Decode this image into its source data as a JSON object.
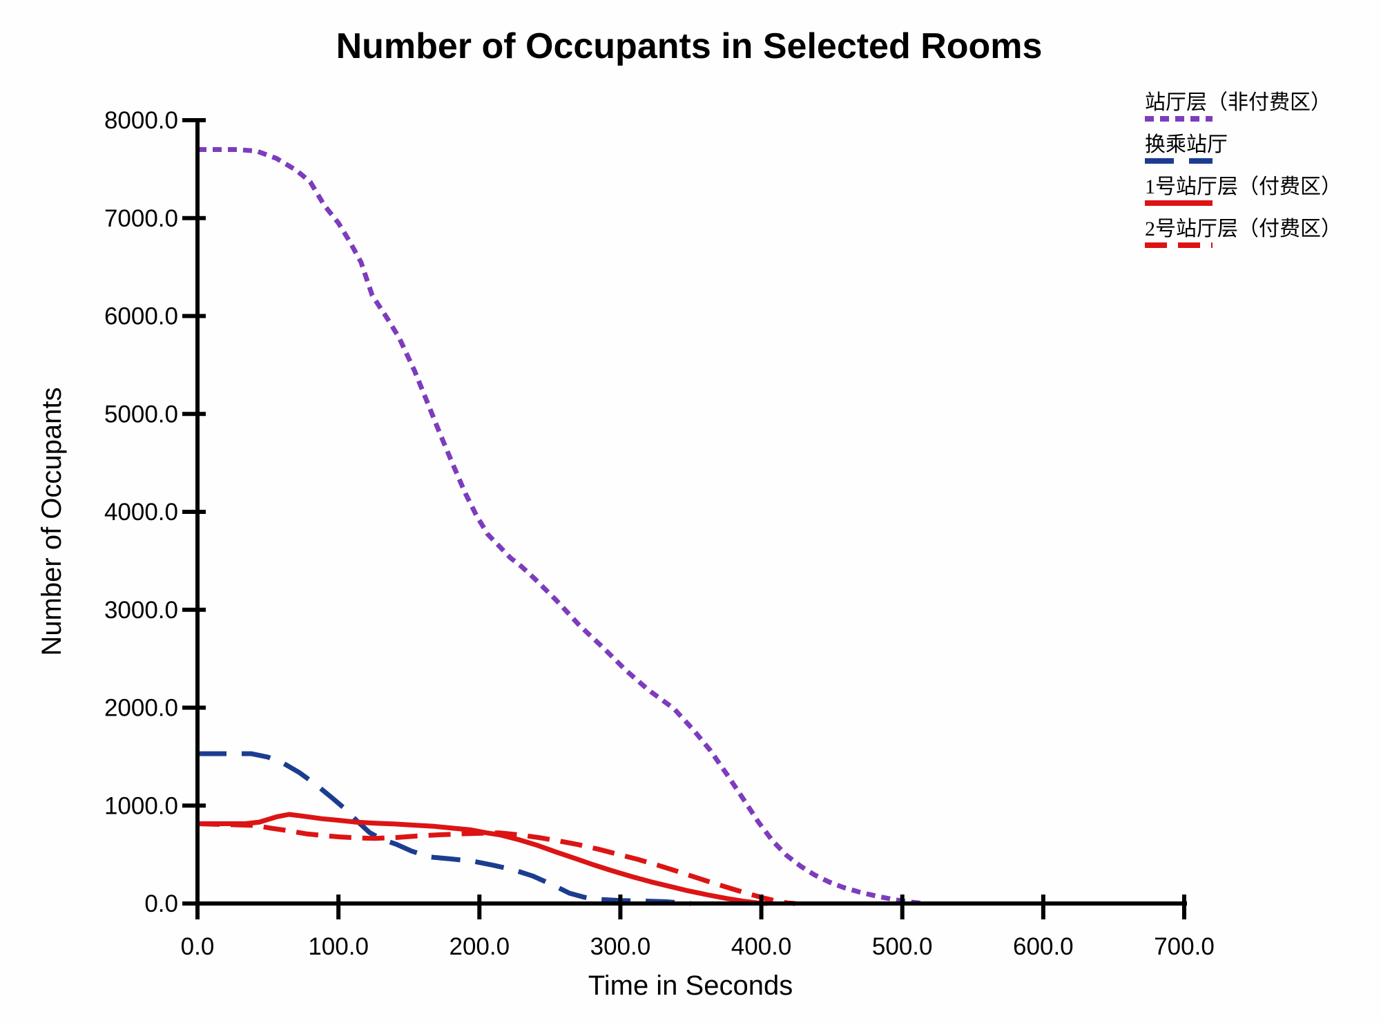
{
  "title": "Number of Occupants in Selected Rooms",
  "legend": [
    {
      "label": "站厅层（非付费区）",
      "series": 0
    },
    {
      "label": "换乘站厅",
      "series": 1
    },
    {
      "label": "1号站厅层（付费区）",
      "series": 2
    },
    {
      "label": "2号站厅层（付费区）",
      "series": 3
    }
  ],
  "chart_data": {
    "type": "line",
    "title": "Number of Occupants in Selected Rooms",
    "xlabel": "Time in Seconds",
    "ylabel": "Number of Occupants",
    "xlim": [
      0,
      700
    ],
    "ylim": [
      0,
      8000
    ],
    "x_tick_labels": [
      "0.0",
      "100.0",
      "200.0",
      "300.0",
      "400.0",
      "500.0",
      "600.0",
      "700.0"
    ],
    "y_tick_labels": [
      "0.0",
      "1000.0",
      "2000.0",
      "3000.0",
      "4000.0",
      "5000.0",
      "6000.0",
      "7000.0",
      "8000.0"
    ],
    "grid": false,
    "legend_position": "top-right",
    "axis_color": "#000000",
    "series": [
      {
        "name": "站厅层（非付费区）",
        "color": "#7D3CBD",
        "style": "dotted",
        "points": [
          [
            0,
            7700
          ],
          [
            28,
            7700
          ],
          [
            42,
            7685
          ],
          [
            56,
            7610
          ],
          [
            70,
            7490
          ],
          [
            80,
            7370
          ],
          [
            90,
            7130
          ],
          [
            100,
            6950
          ],
          [
            108,
            6760
          ],
          [
            116,
            6550
          ],
          [
            124,
            6210
          ],
          [
            134,
            5990
          ],
          [
            143,
            5780
          ],
          [
            154,
            5440
          ],
          [
            163,
            5120
          ],
          [
            172,
            4800
          ],
          [
            181,
            4490
          ],
          [
            190,
            4190
          ],
          [
            198,
            3960
          ],
          [
            206,
            3770
          ],
          [
            214,
            3650
          ],
          [
            222,
            3530
          ],
          [
            230,
            3440
          ],
          [
            239,
            3320
          ],
          [
            255,
            3090
          ],
          [
            271,
            2840
          ],
          [
            288,
            2610
          ],
          [
            304,
            2380
          ],
          [
            320,
            2180
          ],
          [
            338,
            1990
          ],
          [
            352,
            1770
          ],
          [
            364,
            1560
          ],
          [
            376,
            1310
          ],
          [
            388,
            1050
          ],
          [
            398,
            830
          ],
          [
            408,
            640
          ],
          [
            418,
            490
          ],
          [
            428,
            380
          ],
          [
            438,
            290
          ],
          [
            448,
            220
          ],
          [
            458,
            165
          ],
          [
            470,
            115
          ],
          [
            482,
            75
          ],
          [
            494,
            40
          ],
          [
            506,
            15
          ],
          [
            516,
            0
          ]
        ]
      },
      {
        "name": "换乘站厅",
        "color": "#1C3D8F",
        "style": "long-dashed",
        "points": [
          [
            0,
            1530
          ],
          [
            38,
            1530
          ],
          [
            50,
            1495
          ],
          [
            60,
            1440
          ],
          [
            72,
            1340
          ],
          [
            84,
            1215
          ],
          [
            95,
            1085
          ],
          [
            104,
            975
          ],
          [
            113,
            845
          ],
          [
            122,
            725
          ],
          [
            131,
            655
          ],
          [
            141,
            605
          ],
          [
            152,
            535
          ],
          [
            165,
            475
          ],
          [
            180,
            455
          ],
          [
            196,
            430
          ],
          [
            210,
            390
          ],
          [
            224,
            345
          ],
          [
            238,
            280
          ],
          [
            252,
            190
          ],
          [
            264,
            105
          ],
          [
            274,
            65
          ],
          [
            284,
            42
          ],
          [
            300,
            30
          ],
          [
            318,
            25
          ],
          [
            332,
            18
          ],
          [
            342,
            8
          ],
          [
            350,
            0
          ]
        ]
      },
      {
        "name": "1号站厅层（付费区）",
        "color": "#DC1414",
        "style": "solid",
        "points": [
          [
            0,
            815
          ],
          [
            34,
            815
          ],
          [
            44,
            832
          ],
          [
            56,
            885
          ],
          [
            65,
            910
          ],
          [
            76,
            890
          ],
          [
            88,
            866
          ],
          [
            100,
            850
          ],
          [
            112,
            832
          ],
          [
            126,
            820
          ],
          [
            140,
            812
          ],
          [
            154,
            800
          ],
          [
            168,
            788
          ],
          [
            182,
            768
          ],
          [
            194,
            752
          ],
          [
            205,
            722
          ],
          [
            215,
            700
          ],
          [
            228,
            652
          ],
          [
            241,
            595
          ],
          [
            254,
            528
          ],
          [
            268,
            460
          ],
          [
            281,
            395
          ],
          [
            294,
            335
          ],
          [
            308,
            275
          ],
          [
            322,
            220
          ],
          [
            335,
            175
          ],
          [
            348,
            130
          ],
          [
            362,
            88
          ],
          [
            375,
            52
          ],
          [
            387,
            24
          ],
          [
            398,
            5
          ],
          [
            404,
            0
          ]
        ]
      },
      {
        "name": "2号站厅层（付费区）",
        "color": "#DC1414",
        "style": "dashed",
        "points": [
          [
            0,
            815
          ],
          [
            40,
            798
          ],
          [
            52,
            770
          ],
          [
            64,
            744
          ],
          [
            77,
            712
          ],
          [
            89,
            694
          ],
          [
            101,
            680
          ],
          [
            113,
            670
          ],
          [
            126,
            665
          ],
          [
            141,
            674
          ],
          [
            156,
            690
          ],
          [
            172,
            702
          ],
          [
            188,
            712
          ],
          [
            202,
            718
          ],
          [
            214,
            722
          ],
          [
            228,
            702
          ],
          [
            242,
            674
          ],
          [
            256,
            640
          ],
          [
            270,
            602
          ],
          [
            284,
            556
          ],
          [
            297,
            508
          ],
          [
            312,
            452
          ],
          [
            326,
            394
          ],
          [
            340,
            330
          ],
          [
            354,
            264
          ],
          [
            368,
            200
          ],
          [
            381,
            142
          ],
          [
            392,
            95
          ],
          [
            402,
            55
          ],
          [
            411,
            25
          ],
          [
            419,
            5
          ],
          [
            424,
            0
          ]
        ]
      }
    ]
  }
}
